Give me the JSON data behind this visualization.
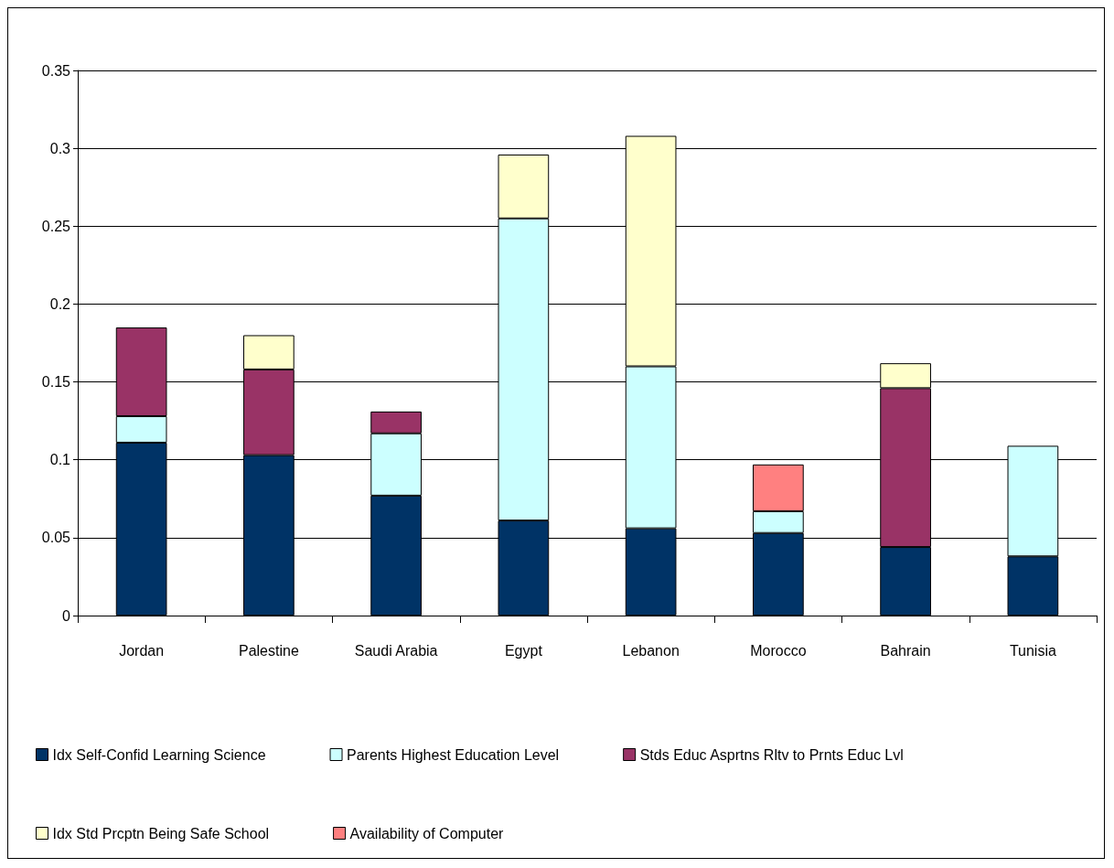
{
  "chart_data": {
    "type": "bar",
    "stacked": true,
    "categories": [
      "Jordan",
      "Palestine",
      "Saudi Arabia",
      "Egypt",
      "Lebanon",
      "Morocco",
      "Bahrain",
      "Tunisia"
    ],
    "series": [
      {
        "name": "Idx Self-Confid Learning Science",
        "color": "#003366",
        "values": [
          0.111,
          0.103,
          0.077,
          0.061,
          0.056,
          0.053,
          0.044,
          0.038
        ]
      },
      {
        "name": "Parents Highest Education Level",
        "color": "#ccffff",
        "values": [
          0.017,
          null,
          0.04,
          0.194,
          0.104,
          0.014,
          null,
          0.071
        ]
      },
      {
        "name": "Stds Educ Asprtns Rltv to Prnts Educ Lvl",
        "color": "#993366",
        "values": [
          0.057,
          0.055,
          0.014,
          null,
          null,
          null,
          0.102,
          null
        ]
      },
      {
        "name": "Idx Std Prcptn Being Safe School",
        "color": "#ffffcc",
        "values": [
          null,
          0.022,
          null,
          0.041,
          0.148,
          null,
          0.016,
          null
        ]
      },
      {
        "name": "Availability of Computer",
        "color": "#ff8080",
        "values": [
          null,
          null,
          null,
          null,
          null,
          0.03,
          null,
          null
        ]
      }
    ],
    "ylim": [
      0,
      0.35
    ],
    "yticks": [
      0,
      0.05,
      0.1,
      0.15,
      0.2,
      0.25,
      0.3,
      0.35
    ],
    "grid": "y",
    "legend": "bottom"
  }
}
